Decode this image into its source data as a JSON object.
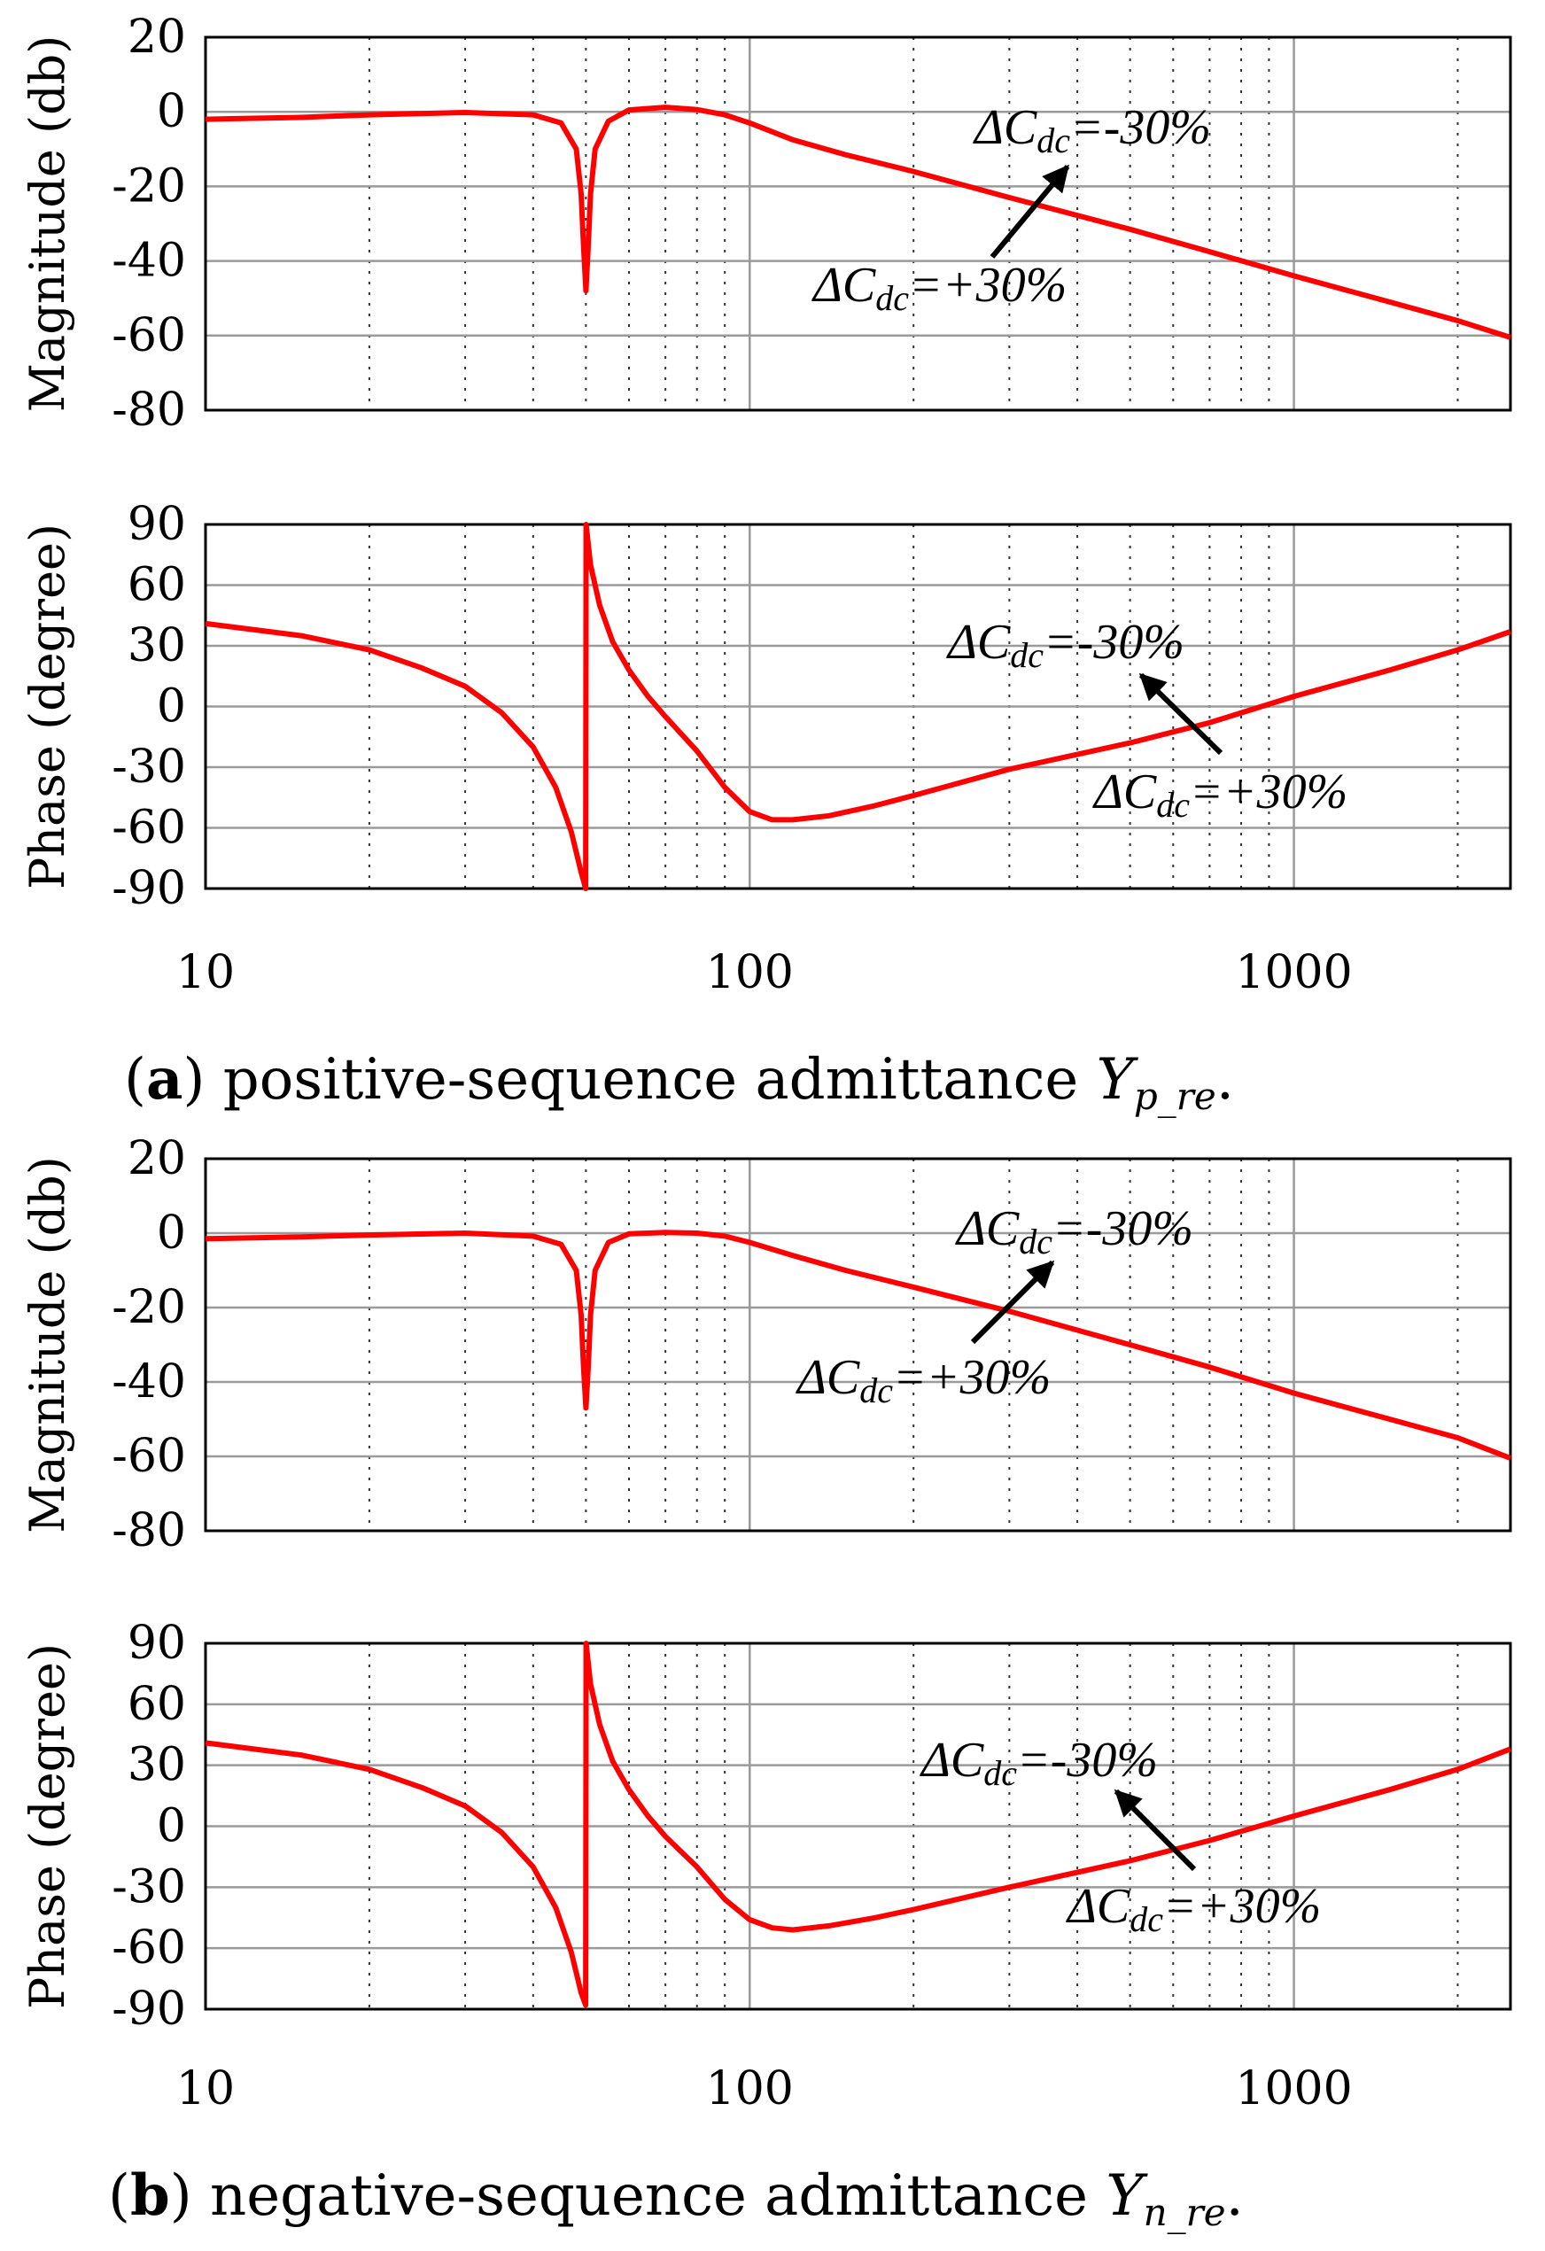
{
  "figure": {
    "captions": [
      {
        "label": "a",
        "text": "positive-sequence admittance ",
        "sym": "Y",
        "sub": "p_re",
        "end": "."
      },
      {
        "label": "b",
        "text": "negative-sequence admittance ",
        "sym": "Y",
        "sub": "n_re",
        "end": "."
      }
    ]
  },
  "chart_data": [
    {
      "type": "line",
      "panel": "a-magnitude",
      "xscale": "log",
      "xlim": [
        10,
        2500
      ],
      "xticks": [
        10,
        100,
        1000
      ],
      "xtick_labels": [
        "10",
        "100",
        "1000"
      ],
      "ylabel": "Magnitude (db)",
      "ylim": [
        -80,
        20
      ],
      "yticks": [
        20,
        0,
        -20,
        -40,
        -60,
        -80
      ],
      "ytick_labels": [
        "20",
        "0",
        "-20",
        "-40",
        "-60",
        "-80"
      ],
      "series": [
        {
          "name": "Y",
          "color": "#ff0000",
          "x": [
            10,
            15,
            20,
            30,
            40,
            45,
            48,
            49,
            49.5,
            50,
            50.5,
            51,
            52,
            55,
            60,
            70,
            80,
            90,
            100,
            120,
            150,
            200,
            300,
            500,
            700,
            1000,
            1500,
            2000,
            2500
          ],
          "y": [
            -2,
            -1.5,
            -0.8,
            -0.2,
            -0.8,
            -3,
            -10,
            -22,
            -36,
            -48,
            -36,
            -22,
            -10,
            -2.5,
            0.5,
            1.2,
            0.6,
            -0.8,
            -3,
            -7.5,
            -11.5,
            -16,
            -23,
            -31.5,
            -37.5,
            -44,
            -51,
            -56,
            -60.5
          ]
        }
      ],
      "annotations": [
        {
          "text": "ΔC",
          "sub": "dc",
          "value": "=-30%"
        },
        {
          "text": "ΔC",
          "sub": "dc",
          "value": "=+30%"
        }
      ]
    },
    {
      "type": "line",
      "panel": "a-phase",
      "xscale": "log",
      "xlim": [
        10,
        2500
      ],
      "xticks": [
        10,
        100,
        1000
      ],
      "xtick_labels": [
        "10",
        "100",
        "1000"
      ],
      "ylabel": "Phase (degree)",
      "ylim": [
        -90,
        90
      ],
      "yticks": [
        90,
        60,
        30,
        0,
        -30,
        -60,
        -90
      ],
      "ytick_labels": [
        "90",
        "60",
        "30",
        "0",
        "-30",
        "-60",
        "-90"
      ],
      "series": [
        {
          "name": "Y",
          "color": "#ff0000",
          "x": [
            10,
            15,
            20,
            25,
            30,
            35,
            40,
            44,
            47,
            49,
            49.95,
            50.05,
            51,
            53,
            56,
            60,
            65,
            70,
            80,
            90,
            100,
            110,
            120,
            140,
            170,
            200,
            300,
            500,
            700,
            1000,
            1500,
            2000,
            2500
          ],
          "y": [
            41,
            35,
            28,
            19,
            10,
            -3,
            -20,
            -40,
            -62,
            -82,
            -90,
            90,
            70,
            50,
            32,
            18,
            5,
            -5,
            -22,
            -40,
            -52,
            -56,
            -56,
            -54,
            -49,
            -44,
            -31,
            -18,
            -8,
            5,
            18,
            28,
            37
          ]
        }
      ],
      "annotations": [
        {
          "text": "ΔC",
          "sub": "dc",
          "value": "=-30%"
        },
        {
          "text": "ΔC",
          "sub": "dc",
          "value": "=+30%"
        }
      ]
    },
    {
      "type": "line",
      "panel": "b-magnitude",
      "xscale": "log",
      "xlim": [
        10,
        2500
      ],
      "xticks": [
        10,
        100,
        1000
      ],
      "xtick_labels": [
        "10",
        "100",
        "1000"
      ],
      "ylabel": "Magnitude (db)",
      "ylim": [
        -80,
        20
      ],
      "yticks": [
        20,
        0,
        -20,
        -40,
        -60,
        -80
      ],
      "ytick_labels": [
        "20",
        "0",
        "-20",
        "-40",
        "-60",
        "-80"
      ],
      "series": [
        {
          "name": "Y",
          "color": "#ff0000",
          "x": [
            10,
            15,
            20,
            30,
            40,
            45,
            48,
            49,
            49.5,
            50,
            50.5,
            51,
            52,
            55,
            60,
            70,
            80,
            90,
            100,
            120,
            150,
            200,
            300,
            500,
            700,
            1000,
            1500,
            2000,
            2500
          ],
          "y": [
            -1.5,
            -1,
            -0.5,
            0,
            -0.8,
            -3,
            -10,
            -22,
            -36,
            -47,
            -36,
            -22,
            -10,
            -2.5,
            -0.2,
            0.2,
            0,
            -0.8,
            -2.5,
            -6,
            -10,
            -14.5,
            -21,
            -30,
            -36,
            -43,
            -50,
            -55,
            -60.5
          ]
        }
      ],
      "annotations": [
        {
          "text": "ΔC",
          "sub": "dc",
          "value": "=-30%"
        },
        {
          "text": "ΔC",
          "sub": "dc",
          "value": "=+30%"
        }
      ]
    },
    {
      "type": "line",
      "panel": "b-phase",
      "xscale": "log",
      "xlim": [
        10,
        2500
      ],
      "xticks": [
        10,
        100,
        1000
      ],
      "xtick_labels": [
        "10",
        "100",
        "1000"
      ],
      "ylabel": "Phase (degree)",
      "ylim": [
        -90,
        90
      ],
      "yticks": [
        90,
        60,
        30,
        0,
        -30,
        -60,
        -90
      ],
      "ytick_labels": [
        "90",
        "60",
        "30",
        "0",
        "-30",
        "-60",
        "-90"
      ],
      "series": [
        {
          "name": "Y",
          "color": "#ff0000",
          "x": [
            10,
            15,
            20,
            25,
            30,
            35,
            40,
            44,
            47,
            49,
            49.95,
            50.05,
            51,
            53,
            56,
            60,
            65,
            70,
            80,
            90,
            100,
            110,
            120,
            140,
            170,
            200,
            300,
            500,
            700,
            1000,
            1500,
            2000,
            2500
          ],
          "y": [
            41,
            35,
            28,
            19,
            10,
            -3,
            -20,
            -40,
            -62,
            -82,
            -88,
            90,
            70,
            50,
            32,
            18,
            5,
            -5,
            -20,
            -36,
            -46,
            -50,
            -51,
            -49,
            -45,
            -41,
            -30,
            -17,
            -7,
            5,
            18,
            28,
            38
          ]
        }
      ],
      "annotations": [
        {
          "text": "ΔC",
          "sub": "dc",
          "value": "=-30%"
        },
        {
          "text": "ΔC",
          "sub": "dc",
          "value": "=+30%"
        }
      ]
    }
  ]
}
